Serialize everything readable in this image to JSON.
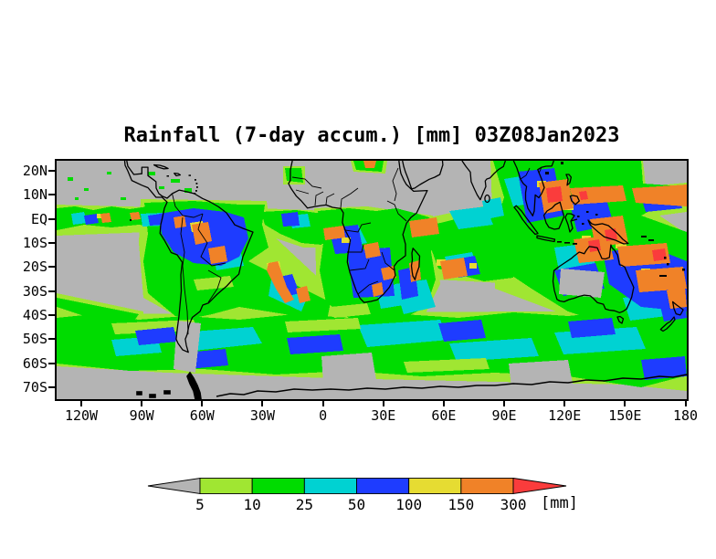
{
  "title": "Rainfall (7-day accum.) [mm] 03Z08Jan2023",
  "axes": {
    "lat_ticks": [
      "20N",
      "10N",
      "EQ",
      "10S",
      "20S",
      "30S",
      "40S",
      "50S",
      "60S",
      "70S"
    ],
    "lon_ticks": [
      "120W",
      "90W",
      "60W",
      "30W",
      "0",
      "30E",
      "60E",
      "90E",
      "120E",
      "150E",
      "180"
    ]
  },
  "legend": {
    "thresholds": [
      "5",
      "10",
      "25",
      "50",
      "100",
      "150",
      "300"
    ],
    "unit_label": "[mm]",
    "under_color": "#b4b4b4",
    "over_color": "#fa3c3c",
    "box_colors": [
      "#a0e632",
      "#00dc00",
      "#00d2d2",
      "#1e3cff",
      "#e6dc32",
      "#f08228"
    ]
  },
  "map": {
    "background_color": "#b4b4b4",
    "coastline_color": "#000000"
  },
  "chart_data": {
    "type": "heatmap",
    "title": "Rainfall (7-day accum.) [mm] 03Z08Jan2023",
    "variable": "7-day accumulated rainfall",
    "unit": "mm",
    "time_label": "03Z08Jan2023",
    "x_axis": {
      "label": "longitude",
      "tick_labels": [
        "120W",
        "90W",
        "60W",
        "30W",
        "0",
        "30E",
        "60E",
        "90E",
        "120E",
        "150E",
        "180"
      ]
    },
    "y_axis": {
      "label": "latitude",
      "tick_labels": [
        "20N",
        "10N",
        "EQ",
        "10S",
        "20S",
        "30S",
        "40S",
        "50S",
        "60S",
        "70S"
      ]
    },
    "legend_position": "bottom",
    "grid": false,
    "bins": [
      {
        "label": "< 5",
        "color": "#b4b4b4"
      },
      {
        "label": "5-10",
        "color": "#a0e632"
      },
      {
        "label": "10-25",
        "color": "#00dc00"
      },
      {
        "label": "25-50",
        "color": "#00d2d2"
      },
      {
        "label": "50-100",
        "color": "#1e3cff"
      },
      {
        "label": "100-150",
        "color": "#e6dc32"
      },
      {
        "label": "150-300",
        "color": "#f08228"
      },
      {
        "label": "> 300",
        "color": "#fa3c3c"
      }
    ],
    "notable_features": [
      "East Pacific ITCZ rain band near 5-10N with embedded 150-300 mm cores",
      "Very heavy rain (50-300+ mm) over Amazon/central Brazil with SACZ band extending southeast into the Atlantic",
      "Atlantic ITCZ band near the equator with 150-300 mm cores",
      "Widespread heavy rain over central/southern Africa and Madagascar (50-300 mm)",
      "South Indian Ocean ITCZ band near 5-15S with 150-300 mm cores",
      "Extreme rain over the Maritime Continent, Philippines, New Guinea, northern Australia and the SPCZ (many areas > 150 mm, local > 300 mm)",
      "Continuous 10-50 mm storm-track rain band across the Southern Ocean (40-60S)",
      "Dry (< 5 mm) over the subtropical oceans, Sahara, Arabia, India interior, central Australia and Antarctica"
    ]
  }
}
